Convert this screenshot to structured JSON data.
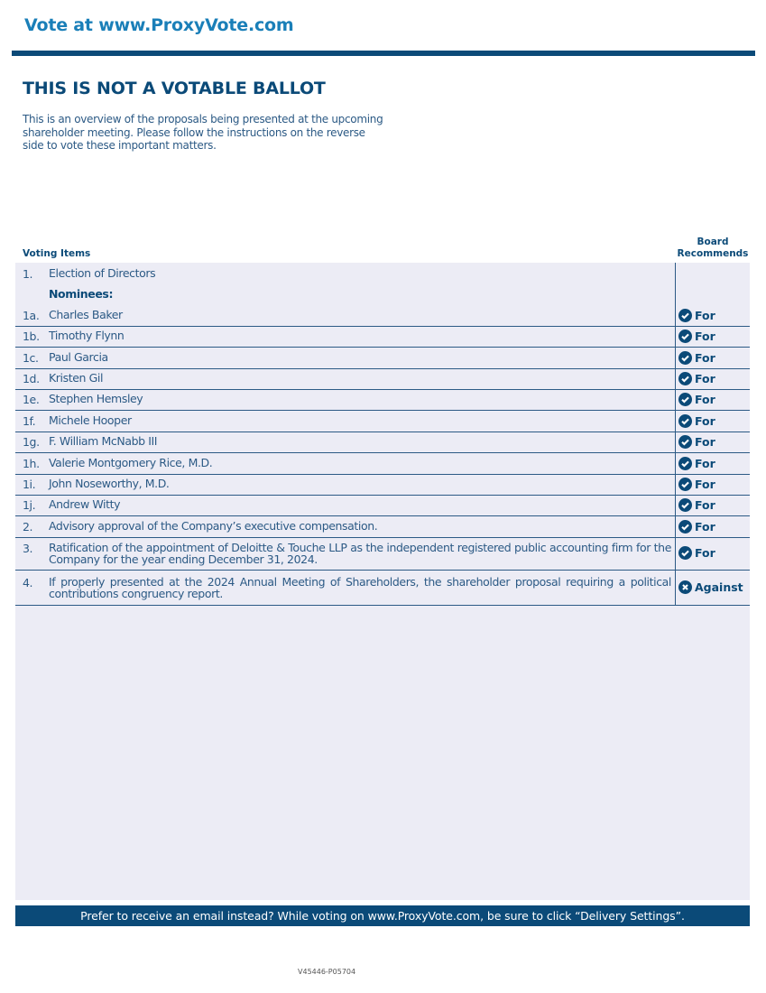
{
  "header": {
    "vote_at": "Vote at www.ProxyVote.com",
    "title": "THIS IS NOT A VOTABLE BALLOT",
    "intro": "This is an overview of the proposals being presented at the upcoming shareholder meeting. Please follow the instructions on the reverse side to vote these important matters."
  },
  "table": {
    "col_items": "Voting Items",
    "col_board": "Board Recommends"
  },
  "items": [
    {
      "num": "1.",
      "text": "Election of Directors",
      "rec": ""
    },
    {
      "num": "",
      "text": "Nominees:",
      "rec": ""
    },
    {
      "num": "1a.",
      "text": "Charles Baker",
      "rec": "For"
    },
    {
      "num": "1b.",
      "text": "Timothy Flynn",
      "rec": "For"
    },
    {
      "num": "1c.",
      "text": "Paul Garcia",
      "rec": "For"
    },
    {
      "num": "1d.",
      "text": "Kristen Gil",
      "rec": "For"
    },
    {
      "num": "1e.",
      "text": "Stephen Hemsley",
      "rec": "For"
    },
    {
      "num": "1f.",
      "text": "Michele Hooper",
      "rec": "For"
    },
    {
      "num": "1g.",
      "text": "F. William McNabb III",
      "rec": "For"
    },
    {
      "num": "1h.",
      "text": "Valerie Montgomery Rice, M.D.",
      "rec": "For"
    },
    {
      "num": "1i.",
      "text": "John Noseworthy, M.D.",
      "rec": "For"
    },
    {
      "num": "1j.",
      "text": "Andrew Witty",
      "rec": "For"
    },
    {
      "num": "2.",
      "text": "Advisory approval of the Company’s executive compensation.",
      "rec": "For"
    },
    {
      "num": "3.",
      "text": "Ratification of the appointment of Deloitte & Touche LLP as the independent registered public accounting firm for the Company for the year ending December 31, 2024.",
      "rec": "For"
    },
    {
      "num": "4.",
      "text": "If properly presented at the 2024 Annual Meeting of Shareholders, the shareholder proposal requiring a political contributions congruency report.",
      "rec": "Against"
    }
  ],
  "footer": {
    "text": "Prefer to receive an email instead? While voting on www.ProxyVote.com, be sure to click “Delivery Settings”.",
    "code": "V45446-P05704"
  },
  "colors": {
    "brand": "#0b4a78",
    "link": "#1a7fb8",
    "panel": "#ececf5"
  }
}
